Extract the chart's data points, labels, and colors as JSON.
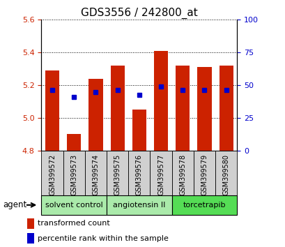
{
  "title": "GDS3556 / 242800_at",
  "samples": [
    "GSM399572",
    "GSM399573",
    "GSM399574",
    "GSM399575",
    "GSM399576",
    "GSM399577",
    "GSM399578",
    "GSM399579",
    "GSM399580"
  ],
  "bar_values": [
    5.29,
    4.9,
    5.24,
    5.32,
    5.05,
    5.41,
    5.32,
    5.31,
    5.32
  ],
  "bar_base": 4.8,
  "blue_marker_values": [
    5.17,
    5.13,
    5.16,
    5.17,
    5.14,
    5.19,
    5.17,
    5.17,
    5.17
  ],
  "ylim_left": [
    4.8,
    5.6
  ],
  "ylim_right": [
    0,
    100
  ],
  "yticks_left": [
    4.8,
    5.0,
    5.2,
    5.4,
    5.6
  ],
  "yticks_right": [
    0,
    25,
    50,
    75,
    100
  ],
  "bar_color": "#cc2200",
  "marker_color": "#0000cc",
  "groups": [
    {
      "label": "solvent control",
      "indices": [
        0,
        1,
        2
      ],
      "color": "#aaeaaa"
    },
    {
      "label": "angiotensin II",
      "indices": [
        3,
        4,
        5
      ],
      "color": "#aaeaaa"
    },
    {
      "label": "torcetrapib",
      "indices": [
        6,
        7,
        8
      ],
      "color": "#55dd55"
    }
  ],
  "agent_label": "agent",
  "legend": [
    {
      "label": "transformed count",
      "color": "#cc2200"
    },
    {
      "label": "percentile rank within the sample",
      "color": "#0000cc"
    }
  ],
  "left_tick_color": "#cc2200",
  "right_tick_color": "#0000cc",
  "bg_xticklabels": "#d0d0d0",
  "grid_color": "#000000",
  "title_fontsize": 11,
  "tick_fontsize": 8,
  "sample_fontsize": 7,
  "group_fontsize": 8,
  "legend_fontsize": 8
}
